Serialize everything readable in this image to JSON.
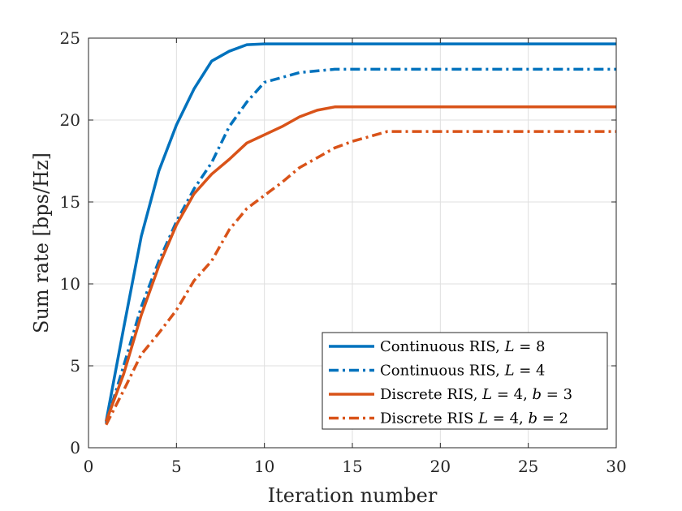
{
  "chart_data": {
    "type": "line",
    "title": "",
    "xlabel": "Iteration number",
    "ylabel": "Sum rate [bps/Hz]",
    "xlim": [
      0,
      30
    ],
    "ylim": [
      0,
      25
    ],
    "xticks": [
      0,
      5,
      10,
      15,
      20,
      25,
      30
    ],
    "yticks": [
      0,
      5,
      10,
      15,
      20,
      25
    ],
    "grid": true,
    "legend_position": "bottom-right",
    "x": [
      1,
      2,
      3,
      4,
      5,
      6,
      7,
      8,
      9,
      10,
      11,
      12,
      13,
      14,
      15,
      16,
      17,
      18,
      19,
      20,
      21,
      22,
      23,
      24,
      25,
      26,
      27,
      28,
      29,
      30
    ],
    "series": [
      {
        "name": "Continuous RIS, L = 8",
        "color": "#0072bd",
        "dash": "solid",
        "values": [
          1.6,
          7.3,
          12.9,
          16.9,
          19.7,
          21.9,
          23.6,
          24.2,
          24.6,
          24.65,
          24.65,
          24.65,
          24.65,
          24.65,
          24.65,
          24.65,
          24.65,
          24.65,
          24.65,
          24.65,
          24.65,
          24.65,
          24.65,
          24.65,
          24.65,
          24.65,
          24.65,
          24.65,
          24.65,
          24.65
        ]
      },
      {
        "name": "Continuous RIS, L = 4",
        "color": "#0072bd",
        "dash": "dashdot",
        "values": [
          1.5,
          5.0,
          8.6,
          11.4,
          13.8,
          15.8,
          17.4,
          19.6,
          21.1,
          22.3,
          22.6,
          22.9,
          23.0,
          23.1,
          23.1,
          23.1,
          23.1,
          23.1,
          23.1,
          23.1,
          23.1,
          23.1,
          23.1,
          23.1,
          23.1,
          23.1,
          23.1,
          23.1,
          23.1,
          23.1
        ]
      },
      {
        "name": "Discrete RIS, L = 4, b = 3",
        "color": "#d95319",
        "dash": "solid",
        "values": [
          1.6,
          4.5,
          8.1,
          11.1,
          13.6,
          15.5,
          16.7,
          17.6,
          18.6,
          19.1,
          19.6,
          20.2,
          20.6,
          20.8,
          20.8,
          20.8,
          20.8,
          20.8,
          20.8,
          20.8,
          20.8,
          20.8,
          20.8,
          20.8,
          20.8,
          20.8,
          20.8,
          20.8,
          20.8,
          20.8
        ]
      },
      {
        "name": "Discrete RIS L = 4, b = 2",
        "color": "#d95319",
        "dash": "dashdot",
        "values": [
          1.4,
          3.5,
          5.7,
          7.0,
          8.4,
          10.2,
          11.4,
          13.3,
          14.6,
          15.4,
          16.2,
          17.1,
          17.7,
          18.3,
          18.7,
          19.0,
          19.3,
          19.3,
          19.3,
          19.3,
          19.3,
          19.3,
          19.3,
          19.3,
          19.3,
          19.3,
          19.3,
          19.3,
          19.3,
          19.3
        ]
      }
    ]
  },
  "legend": {
    "entries": [
      {
        "prefix": "Continuous RIS, ",
        "var1": "L",
        "eq1": " = 8",
        "var2": "",
        "eq2": ""
      },
      {
        "prefix": "Continuous RIS, ",
        "var1": "L",
        "eq1": " = 4",
        "var2": "",
        "eq2": ""
      },
      {
        "prefix": "Discrete RIS, ",
        "var1": "L",
        "eq1": " = 4, ",
        "var2": "b",
        "eq2": " = 3"
      },
      {
        "prefix": "Discrete RIS ",
        "var1": "L",
        "eq1": " = 4, ",
        "var2": "b",
        "eq2": " = 2"
      }
    ]
  }
}
